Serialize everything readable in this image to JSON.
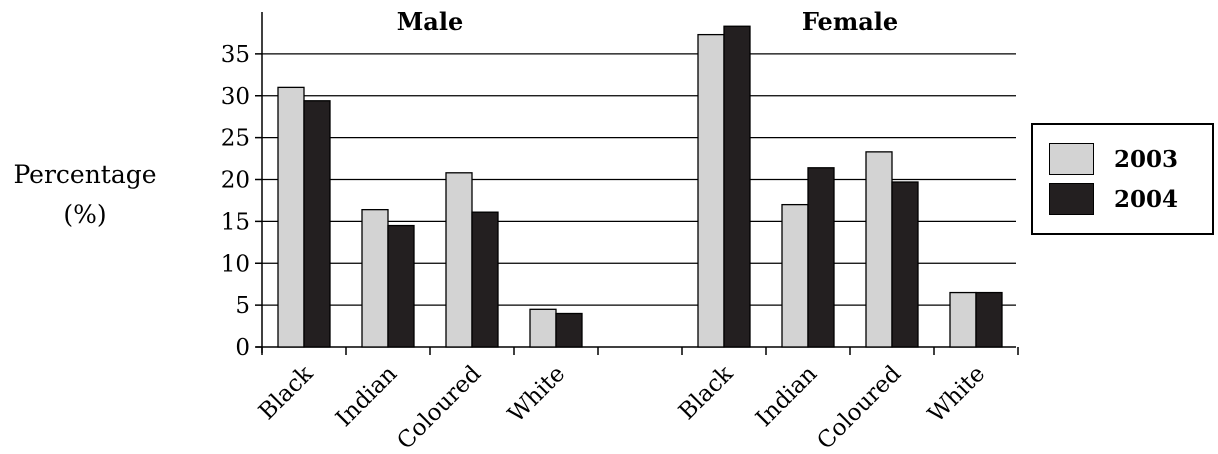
{
  "colors": {
    "series_2003": "#d3d3d3",
    "series_2004": "#231f20",
    "axis": "#000000"
  },
  "y_axis_label": {
    "line1": "Percentage",
    "line2": "(%)"
  },
  "legend": {
    "items": [
      {
        "label": "2003",
        "color": "#d3d3d3"
      },
      {
        "label": "2004",
        "color": "#231f20"
      }
    ]
  },
  "chart_data": {
    "type": "bar",
    "panels": [
      {
        "title": "Male",
        "categories": [
          "Black",
          "Indian",
          "Coloured",
          "White"
        ],
        "series": [
          {
            "name": "2003",
            "values": [
              31,
              16.4,
              20.8,
              4.5
            ]
          },
          {
            "name": "2004",
            "values": [
              29.4,
              14.5,
              16.1,
              4
            ]
          }
        ]
      },
      {
        "title": "Female",
        "categories": [
          "Black",
          "Indian",
          "Coloured",
          "White"
        ],
        "series": [
          {
            "name": "2003",
            "values": [
              37.3,
              17,
              23.3,
              6.5
            ]
          },
          {
            "name": "2004",
            "values": [
              38.3,
              21.4,
              19.7,
              6.5
            ]
          }
        ]
      }
    ],
    "ylabel": "Percentage (%)",
    "ylim": [
      0,
      40
    ],
    "yticks": [
      0,
      5,
      10,
      15,
      20,
      25,
      30,
      35
    ],
    "grid": true,
    "legend_position": "right"
  }
}
